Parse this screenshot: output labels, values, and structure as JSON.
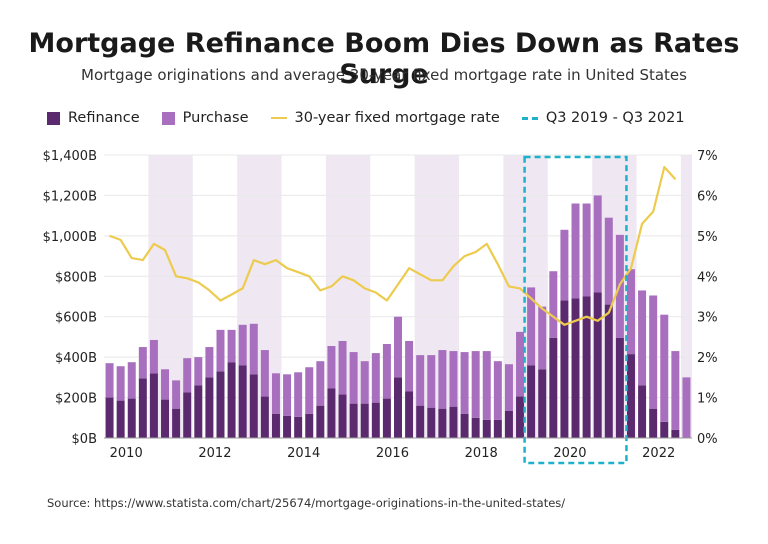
{
  "title": "Mortgage Refinance Boom Dies Down as Rates Surge",
  "subtitle": "Mortgage originations and average 30-year fixed mortgage rate in United States",
  "source": "Source: https://www.statista.com/chart/25674/mortgage-originations-in-the-united-states/",
  "colors": {
    "refinance": "#5b2a6e",
    "purchase": "#a76fbd",
    "rate": "#eccb4e",
    "highlight": "#1cb2cc",
    "band": "#efe8f2",
    "grid": "#e8e8e8"
  },
  "legend": {
    "refinance": "Refinance",
    "purchase": "Purchase",
    "rate": "30-year fixed mortgage rate",
    "highlight": "Q3 2019 - Q3 2021"
  },
  "chart_data": {
    "type": "bar",
    "stacked": true,
    "quarters": [
      "2010 Q1",
      "2010 Q2",
      "2010 Q3",
      "2010 Q4",
      "2011 Q1",
      "2011 Q2",
      "2011 Q3",
      "2011 Q4",
      "2012 Q1",
      "2012 Q2",
      "2012 Q3",
      "2012 Q4",
      "2013 Q1",
      "2013 Q2",
      "2013 Q3",
      "2013 Q4",
      "2014 Q1",
      "2014 Q2",
      "2014 Q3",
      "2014 Q4",
      "2015 Q1",
      "2015 Q2",
      "2015 Q3",
      "2015 Q4",
      "2016 Q1",
      "2016 Q2",
      "2016 Q3",
      "2016 Q4",
      "2017 Q1",
      "2017 Q2",
      "2017 Q3",
      "2017 Q4",
      "2018 Q1",
      "2018 Q2",
      "2018 Q3",
      "2018 Q4",
      "2019 Q1",
      "2019 Q2",
      "2019 Q3",
      "2019 Q4",
      "2020 Q1",
      "2020 Q2",
      "2020 Q3",
      "2020 Q4",
      "2021 Q1",
      "2021 Q2",
      "2021 Q3",
      "2021 Q4",
      "2022 Q1",
      "2022 Q2",
      "2022 Q3",
      "2022 Q4",
      "2023 Q1"
    ],
    "series": [
      {
        "name": "Refinance",
        "axis": "left",
        "unit": "B USD",
        "values": [
          200,
          185,
          195,
          295,
          320,
          190,
          145,
          225,
          260,
          300,
          330,
          375,
          360,
          315,
          205,
          120,
          110,
          105,
          120,
          160,
          245,
          215,
          170,
          170,
          175,
          195,
          300,
          230,
          160,
          150,
          145,
          155,
          120,
          100,
          90,
          90,
          135,
          205,
          360,
          340,
          495,
          680,
          690,
          700,
          720,
          660,
          495,
          415,
          260,
          145,
          80,
          40,
          0
        ]
      },
      {
        "name": "Purchase",
        "axis": "left",
        "unit": "B USD",
        "values": [
          170,
          170,
          180,
          155,
          165,
          150,
          140,
          170,
          140,
          150,
          205,
          160,
          200,
          250,
          230,
          200,
          205,
          220,
          230,
          220,
          210,
          265,
          255,
          210,
          245,
          270,
          300,
          250,
          250,
          260,
          290,
          275,
          305,
          330,
          340,
          290,
          230,
          320,
          385,
          310,
          330,
          350,
          470,
          460,
          480,
          430,
          510,
          420,
          470,
          560,
          530,
          390,
          300
        ]
      },
      {
        "name": "30-year fixed mortgage rate",
        "axis": "right",
        "type": "line",
        "unit": "%",
        "values": [
          5.0,
          4.9,
          4.45,
          4.4,
          4.8,
          4.65,
          4.0,
          3.95,
          3.85,
          3.65,
          3.4,
          3.55,
          3.7,
          4.4,
          4.3,
          4.4,
          4.2,
          4.1,
          4.0,
          3.65,
          3.75,
          4.0,
          3.9,
          3.7,
          3.6,
          3.4,
          3.8,
          4.2,
          4.05,
          3.9,
          3.9,
          4.25,
          4.5,
          4.6,
          4.8,
          4.3,
          3.75,
          3.7,
          3.45,
          3.2,
          3.0,
          2.8,
          2.9,
          3.0,
          2.9,
          3.1,
          3.8,
          4.2,
          5.3,
          5.6,
          6.7,
          6.4,
          null
        ]
      }
    ],
    "year_labels": [
      "2010",
      "2012",
      "2014",
      "2016",
      "2018",
      "2020",
      "2022"
    ],
    "left_axis": {
      "min": 0,
      "max": 1400,
      "ticks": [
        "$0B",
        "$200B",
        "$400B",
        "$600B",
        "$800B",
        "$1,000B",
        "$1,200B",
        "$1,400B"
      ],
      "tick_values": [
        0,
        200,
        400,
        600,
        800,
        1000,
        1200,
        1400
      ]
    },
    "right_axis": {
      "min": 0,
      "max": 7,
      "ticks": [
        "0%",
        "1%",
        "2%",
        "3%",
        "4%",
        "5%",
        "6%",
        "7%"
      ],
      "tick_values": [
        0,
        1,
        2,
        3,
        4,
        5,
        6,
        7
      ]
    },
    "highlight_range": {
      "from": "2019 Q3",
      "to": "2021 Q3"
    },
    "alternating_year_bands": true,
    "grid": true,
    "legend_position": "top-left"
  }
}
